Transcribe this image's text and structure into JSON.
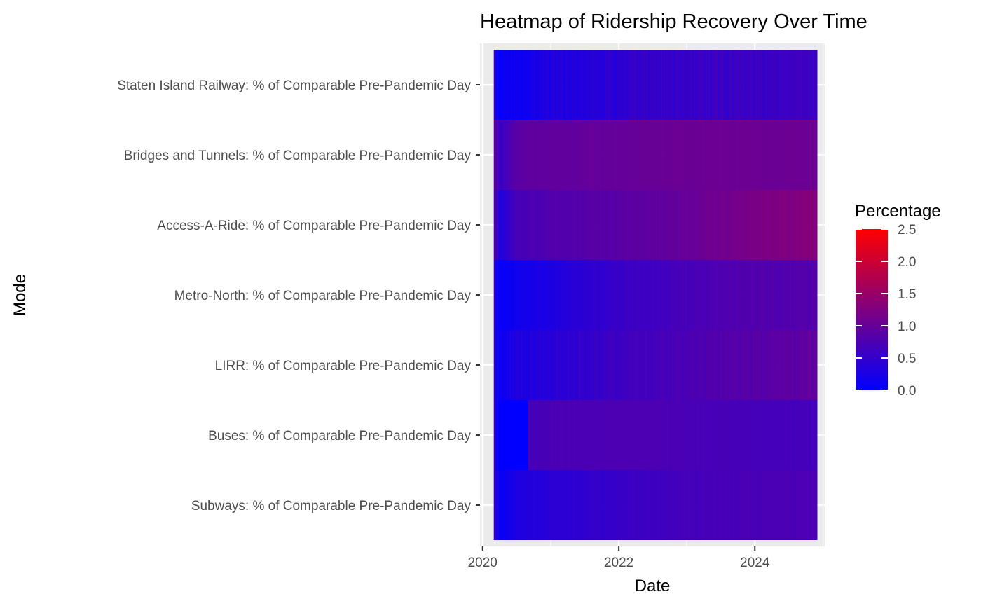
{
  "chart_data": {
    "type": "heatmap",
    "title": "Heatmap of Ridership Recovery Over Time",
    "xlabel": "Date",
    "ylabel": "Mode",
    "x_range": [
      "2020-03-01",
      "2024-11-30"
    ],
    "x_axis_limits": [
      "2019-12-18",
      "2025-01-10"
    ],
    "x_ticks": [
      "2020",
      "2022",
      "2024"
    ],
    "x_tick_years": [
      2020,
      2022,
      2024
    ],
    "grid": true,
    "legend": {
      "title": "Percentage",
      "position": "right",
      "min": 0,
      "max": 2.5,
      "ticks": [
        "0.0",
        "0.5",
        "1.0",
        "1.5",
        "2.0",
        "2.5"
      ],
      "low_color": "#0000ff",
      "high_color": "#ff0000"
    },
    "rows": [
      {
        "label": "Staten Island Railway: % of Comparable Pre-Pandemic Day",
        "stripe_amplitude": 0.12,
        "points": [
          {
            "x": "2020-03-01",
            "y": 0.5
          },
          {
            "x": "2020-03-15",
            "y": 0.05
          },
          {
            "x": "2020-07-01",
            "y": 0.15
          },
          {
            "x": "2021-01-01",
            "y": 0.3
          },
          {
            "x": "2022-01-01",
            "y": 0.45
          },
          {
            "x": "2023-01-01",
            "y": 0.55
          },
          {
            "x": "2024-01-01",
            "y": 0.58
          },
          {
            "x": "2024-11-30",
            "y": 0.6
          }
        ]
      },
      {
        "label": "Bridges and Tunnels: % of Comparable Pre-Pandemic Day",
        "stripe_amplitude": 0.03,
        "points": [
          {
            "x": "2020-03-01",
            "y": 0.9
          },
          {
            "x": "2020-04-01",
            "y": 0.55
          },
          {
            "x": "2020-07-01",
            "y": 0.9
          },
          {
            "x": "2021-01-01",
            "y": 0.95
          },
          {
            "x": "2022-01-01",
            "y": 1.0
          },
          {
            "x": "2023-01-01",
            "y": 1.05
          },
          {
            "x": "2024-01-01",
            "y": 1.05
          },
          {
            "x": "2024-11-30",
            "y": 1.05
          }
        ]
      },
      {
        "label": "Access-A-Ride: % of Comparable Pre-Pandemic Day",
        "stripe_amplitude": 0.05,
        "points": [
          {
            "x": "2020-03-01",
            "y": 0.8
          },
          {
            "x": "2020-04-01",
            "y": 0.3
          },
          {
            "x": "2020-07-01",
            "y": 0.7
          },
          {
            "x": "2021-01-01",
            "y": 0.8
          },
          {
            "x": "2022-01-01",
            "y": 0.88
          },
          {
            "x": "2023-01-01",
            "y": 1.0
          },
          {
            "x": "2024-01-01",
            "y": 1.2
          },
          {
            "x": "2024-11-30",
            "y": 1.3
          }
        ]
      },
      {
        "label": "Metro-North: % of Comparable Pre-Pandemic Day",
        "stripe_amplitude": 0.06,
        "points": [
          {
            "x": "2020-03-01",
            "y": 0.5
          },
          {
            "x": "2020-03-20",
            "y": 0.05
          },
          {
            "x": "2020-07-01",
            "y": 0.15
          },
          {
            "x": "2021-01-01",
            "y": 0.3
          },
          {
            "x": "2022-01-01",
            "y": 0.55
          },
          {
            "x": "2023-01-01",
            "y": 0.7
          },
          {
            "x": "2024-01-01",
            "y": 0.8
          },
          {
            "x": "2024-11-30",
            "y": 0.82
          }
        ]
      },
      {
        "label": "LIRR: % of Comparable Pre-Pandemic Day",
        "stripe_amplitude": 0.1,
        "points": [
          {
            "x": "2020-03-01",
            "y": 0.5
          },
          {
            "x": "2020-03-20",
            "y": 0.05
          },
          {
            "x": "2020-07-01",
            "y": 0.3
          },
          {
            "x": "2021-01-01",
            "y": 0.4
          },
          {
            "x": "2022-01-01",
            "y": 0.6
          },
          {
            "x": "2023-01-01",
            "y": 0.75
          },
          {
            "x": "2024-01-01",
            "y": 0.88
          },
          {
            "x": "2024-11-30",
            "y": 0.95
          }
        ]
      },
      {
        "label": "Buses: % of Comparable Pre-Pandemic Day",
        "stripe_amplitude": 0.03,
        "points": [
          {
            "x": "2020-03-01",
            "y": 0.6
          },
          {
            "x": "2020-03-20",
            "y": 0.0
          },
          {
            "x": "2020-08-30",
            "y": 0.0
          },
          {
            "x": "2020-09-01",
            "y": 0.7
          },
          {
            "x": "2021-01-01",
            "y": 0.72
          },
          {
            "x": "2022-01-01",
            "y": 0.75
          },
          {
            "x": "2023-01-01",
            "y": 0.73
          },
          {
            "x": "2024-01-01",
            "y": 0.68
          },
          {
            "x": "2024-11-30",
            "y": 0.66
          }
        ]
      },
      {
        "label": "Subways: % of Comparable Pre-Pandemic Day",
        "stripe_amplitude": 0.04,
        "points": [
          {
            "x": "2020-03-01",
            "y": 0.5
          },
          {
            "x": "2020-04-01",
            "y": 0.08
          },
          {
            "x": "2020-07-01",
            "y": 0.28
          },
          {
            "x": "2021-01-01",
            "y": 0.4
          },
          {
            "x": "2022-01-01",
            "y": 0.55
          },
          {
            "x": "2023-01-01",
            "y": 0.68
          },
          {
            "x": "2024-01-01",
            "y": 0.72
          },
          {
            "x": "2024-11-30",
            "y": 0.74
          }
        ]
      }
    ]
  }
}
